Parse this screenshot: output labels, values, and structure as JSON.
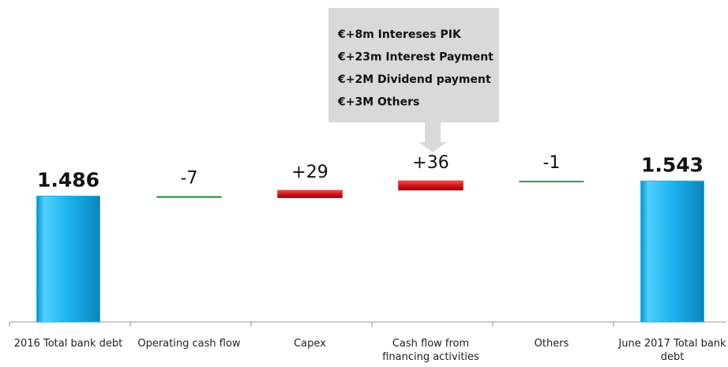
{
  "chart_data": {
    "type": "waterfall",
    "categories": [
      "2016 Total bank debt",
      "Operating cash flow",
      "Capex",
      "Cash flow from financing activities",
      "Others",
      "June 2017 Total bank debt"
    ],
    "values": [
      1486,
      -7,
      29,
      36,
      -1,
      1543
    ],
    "value_labels": [
      "1.486",
      "-7",
      "+29",
      "+36",
      "-1",
      "1.543"
    ],
    "total_color": "#1cb2ee",
    "increase_color": "#d3141b",
    "decrease_color": "#2a9d4f",
    "annotation": [
      "€+8m  Intereses PIK",
      "€+23m  Interest Payment",
      "€+2M  Dividend payment",
      "€+3M  Others"
    ]
  }
}
